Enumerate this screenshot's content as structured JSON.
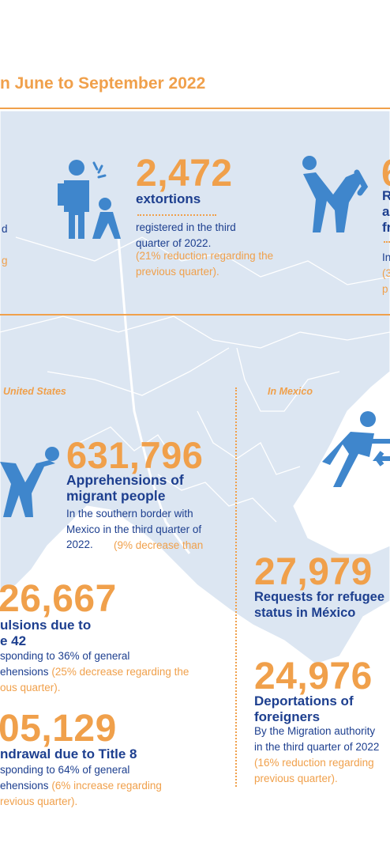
{
  "title": "n June to September 2022",
  "regions": {
    "us": "United States",
    "mexico": "In Mexico"
  },
  "left_partial_lines": [
    "d",
    "g"
  ],
  "extortions": {
    "number": "2,472",
    "label": "extortions",
    "text": "registered in the third quarter of 2022.",
    "note": "(21% reduction regarding the previous quarter)."
  },
  "right_top": {
    "number": "6",
    "label_lines": [
      "R",
      "a",
      "fr"
    ],
    "text_lines": [
      "In",
      "(3",
      "p"
    ]
  },
  "apprehensions": {
    "number": "631,796",
    "label": "Apprehensions of migrant people",
    "text": "In the southern border with Mexico in the third quarter of 2022.",
    "note": "(9% decrease than"
  },
  "expulsions": {
    "number": "26,667",
    "label_lines": [
      "ulsions due to",
      "e 42"
    ],
    "text_line1": "sponding to 36% of general",
    "text_line2": "ehensions",
    "note_line2": "(25% decrease regarding the",
    "note_line3": "ous quarter)."
  },
  "withdrawal": {
    "number": "05,129",
    "label": "ndrawal due to Title 8",
    "text_line1": "sponding to 64% of general",
    "text_line2": "ehensions",
    "note_line2": "(6% increase regarding",
    "note_line3": "revious quarter)."
  },
  "refugee": {
    "number": "27,979",
    "label_lines": [
      "Requests for refugee",
      "status in México"
    ]
  },
  "deportations": {
    "number": "24,976",
    "label_lines": [
      "Deportations of",
      "foreigners"
    ],
    "text_line1": "By the Migration authority",
    "text_line2": "in the third quarter of 2022",
    "note_line1": "(16% reduction regarding",
    "note_line2": "previous quarter)."
  },
  "icons": [
    "extortion-icon",
    "assault-icon",
    "apprehension-icon",
    "deportation-icon"
  ],
  "colors": {
    "orange": "#f0a04b",
    "navy": "#1d3f8f",
    "icon_blue": "#3f86cc",
    "map": "#dce6f2"
  }
}
